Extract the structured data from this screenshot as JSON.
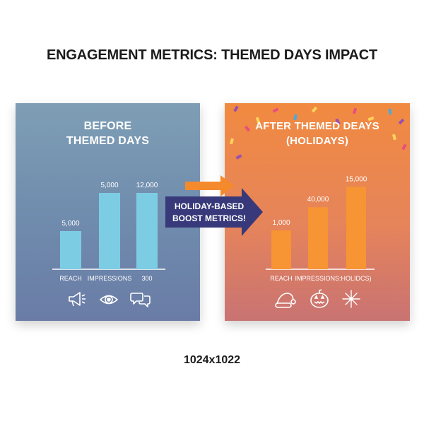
{
  "title": "ENGAGEMENT METRICS: THEMED DAYS IMPACT",
  "footer": "1024x1022",
  "callout": {
    "line1": "HOLIDAY-BASED",
    "line2": "BOOST METRICS!"
  },
  "colors": {
    "before_bar": "#7ccde4",
    "after_bar": "#f79433",
    "arrow_navy": "#38397a",
    "arrow_orange": "#f58a2c"
  },
  "chart_data": [
    {
      "type": "bar",
      "title_lines": [
        "BEFORE",
        "THEMED DAYS"
      ],
      "categories": [
        "REACH",
        "IMPRESSIONS",
        "300"
      ],
      "values": [
        5000,
        5000,
        12000
      ],
      "labels": [
        "5,000",
        "5,000",
        "12,000"
      ],
      "bar_heights": [
        0.36,
        0.72,
        0.72
      ],
      "icons": [
        "megaphone-icon",
        "eye-icon",
        "chat-bubbles-icon"
      ]
    },
    {
      "type": "bar",
      "title_lines": [
        "AFTER THEMED DEAYS",
        "(HOLIDAYS)"
      ],
      "categories": [
        "REACH",
        "IMPRESSIONS:",
        "HOLIDCS)"
      ],
      "values": [
        1000,
        40000,
        15000
      ],
      "labels": [
        "1,000",
        "40,000",
        "15,000"
      ],
      "bar_heights": [
        0.42,
        0.67,
        0.89
      ],
      "icons": [
        "santa-hat-icon",
        "pumpkin-icon",
        "fireworks-icon"
      ]
    }
  ]
}
